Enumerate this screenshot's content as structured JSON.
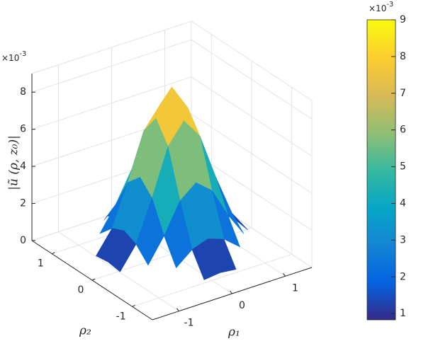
{
  "chart_data": {
    "type": "surface",
    "colormap": "parula",
    "zlabel": "|ũ (ρ, z₀)|",
    "xlabel": "ρ₁",
    "ylabel": "ρ₂",
    "z_exponent_base": "×10",
    "z_exponent_power": "-3",
    "colorbar_exponent_base": "×10",
    "colorbar_exponent_power": "-3",
    "x": [
      -1.2,
      -0.9,
      -0.6,
      -0.3,
      0,
      0.3,
      0.6,
      0.9,
      1.2
    ],
    "y": [
      -1.2,
      -0.9,
      -0.6,
      -0.3,
      0,
      0.3,
      0.6,
      0.9,
      1.2
    ],
    "z": [
      [
        null,
        null,
        null,
        0.6,
        0.7,
        0.6,
        null,
        null,
        null
      ],
      [
        null,
        null,
        1.1,
        1.8,
        2.1,
        1.8,
        1.1,
        null,
        null
      ],
      [
        null,
        1.1,
        2.4,
        4.0,
        4.7,
        4.0,
        2.4,
        1.1,
        null
      ],
      [
        0.6,
        1.8,
        4.0,
        6.5,
        7.6,
        6.5,
        4.0,
        1.8,
        0.6
      ],
      [
        0.7,
        2.1,
        4.7,
        7.6,
        9.0,
        7.6,
        4.7,
        2.1,
        0.7
      ],
      [
        0.6,
        1.8,
        4.0,
        6.5,
        7.6,
        6.5,
        4.0,
        1.8,
        0.6
      ],
      [
        null,
        1.1,
        2.4,
        4.0,
        4.7,
        4.0,
        2.4,
        1.1,
        null
      ],
      [
        null,
        null,
        1.1,
        1.8,
        2.1,
        1.8,
        1.1,
        null,
        null
      ],
      [
        null,
        null,
        null,
        0.6,
        0.7,
        0.6,
        null,
        null,
        null
      ]
    ],
    "xlim": [
      -1.5,
      1.5
    ],
    "ylim": [
      -1.5,
      1.5
    ],
    "zlim": [
      0,
      9
    ],
    "xticks": [
      -1,
      0,
      1
    ],
    "yticks": [
      -1,
      0,
      1
    ],
    "zticks": [
      0,
      2,
      4,
      6,
      8
    ],
    "clim": [
      0.83,
      9
    ],
    "cticks": [
      1,
      2,
      3,
      4,
      5,
      6,
      7,
      8,
      9
    ],
    "grid": true
  }
}
